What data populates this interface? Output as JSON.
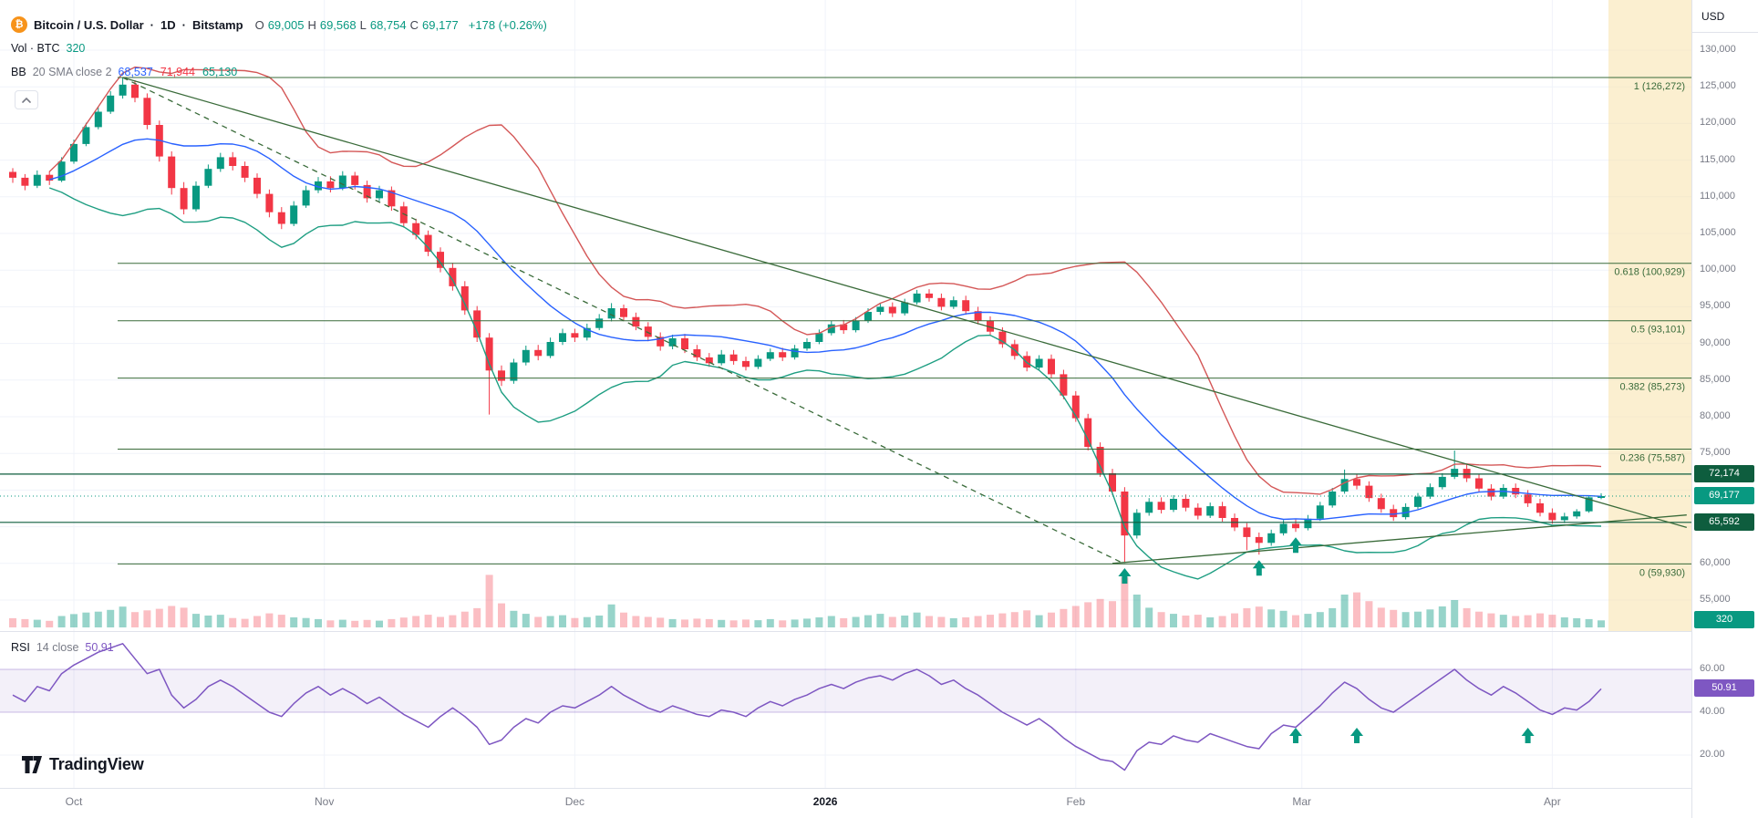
{
  "legend": {
    "title": {
      "symbol": "Bitcoin / U.S. Dollar",
      "separator": "·",
      "interval": "1D",
      "exchange": "Bitstamp"
    },
    "ohlc": [
      {
        "key": "O",
        "value": "69,005"
      },
      {
        "key": "H",
        "value": "69,568"
      },
      {
        "key": "L",
        "value": "68,754"
      },
      {
        "key": "C",
        "value": "69,177"
      }
    ],
    "change": "+178 (+0.26%)",
    "volume": {
      "label": "Vol · BTC",
      "value": "320"
    },
    "bb": {
      "name": "BB",
      "params": "20 SMA close 2",
      "values": [
        {
          "text": "68,537",
          "color": "#2962ff"
        },
        {
          "text": "71,944",
          "color": "#f23645"
        },
        {
          "text": "65,130",
          "color": "#089981"
        }
      ]
    },
    "rsi": {
      "name": "RSI",
      "params": "14 close",
      "value": "50.91"
    }
  },
  "price_axis": {
    "currency": "USD",
    "ticks": [
      {
        "price": 130000,
        "label": "130,000"
      },
      {
        "price": 125000,
        "label": "125,000"
      },
      {
        "price": 120000,
        "label": "120,000"
      },
      {
        "price": 115000,
        "label": "115,000"
      },
      {
        "price": 110000,
        "label": "110,000"
      },
      {
        "price": 105000,
        "label": "105,000"
      },
      {
        "price": 100000,
        "label": "100,000"
      },
      {
        "price": 95000,
        "label": "95,000"
      },
      {
        "price": 90000,
        "label": "90,000"
      },
      {
        "price": 85000,
        "label": "85,000"
      },
      {
        "price": 80000,
        "label": "80,000"
      },
      {
        "price": 75000,
        "label": "75,000"
      },
      {
        "price": 60000,
        "label": "60,000"
      },
      {
        "price": 55000,
        "label": "55,000"
      }
    ],
    "badges": [
      {
        "label": "72,174",
        "price": 72174,
        "color": "#0e5d3e"
      },
      {
        "label": "69,177",
        "price": 69177,
        "color": "#089981"
      },
      {
        "label": "65,592",
        "price": 65592,
        "color": "#0e5d3e"
      }
    ],
    "volume_badge": {
      "label": "320",
      "color": "#089981"
    }
  },
  "rsi_axis": {
    "ticks": [
      {
        "value": 60,
        "label": "60.00"
      },
      {
        "value": 40,
        "label": "40.00"
      },
      {
        "value": 20,
        "label": "20.00"
      }
    ],
    "badge": {
      "label": "50.91",
      "value": 50.91,
      "color": "#7e57c2"
    }
  },
  "time_axis": {
    "months": [
      {
        "label": "Oct",
        "index": 5
      },
      {
        "label": "Nov",
        "index": 25.5
      },
      {
        "label": "Dec",
        "index": 46
      },
      {
        "label": "2026",
        "index": 66.5,
        "year": true
      },
      {
        "label": "Feb",
        "index": 87
      },
      {
        "label": "Mar",
        "index": 105.5
      },
      {
        "label": "Apr",
        "index": 126
      }
    ]
  },
  "watermark": "TradingView",
  "chart_data": {
    "type": "candlestick",
    "symbol": "Bitcoin / U.S. Dollar (Bitstamp)",
    "interval": "1D",
    "price_axis_range": [
      55000,
      130000
    ],
    "last_price": 69177,
    "last_volume": 320,
    "fib_levels": [
      {
        "label": "1 (126,272)",
        "price": 126272
      },
      {
        "label": "0.618 (100,929)",
        "price": 100929
      },
      {
        "label": "0.5 (93,101)",
        "price": 93101
      },
      {
        "label": "0.382 (85,273)",
        "price": 85273
      },
      {
        "label": "0.236 (75,587)",
        "price": 75587
      },
      {
        "label": "0 (59,930)",
        "price": 59930
      }
    ],
    "horizontal_lines": [
      {
        "price": 72174,
        "label": "72,174"
      },
      {
        "price": 65592,
        "label": "65,592"
      }
    ],
    "trend_lines": [
      {
        "from_index": 9,
        "from_price": 126272,
        "to_index": 137,
        "to_price": 64900,
        "dashed": false
      },
      {
        "from_index": 90,
        "from_price": 60000,
        "to_index": 137,
        "to_price": 66600,
        "dashed": false
      },
      {
        "from_index": 9,
        "from_price": 126272,
        "to_index": 91,
        "to_price": 59930,
        "dashed": true
      }
    ],
    "price_arrows": [
      91,
      102,
      105
    ],
    "rsi_arrows": [
      105,
      110,
      124
    ],
    "rsi_bands": [
      40,
      60
    ],
    "candles": [
      [
        113400,
        113900,
        111900,
        112600
      ],
      [
        112600,
        113100,
        110900,
        111500
      ],
      [
        111500,
        113600,
        111200,
        113000
      ],
      [
        113000,
        113500,
        111600,
        112200
      ],
      [
        112200,
        115400,
        112000,
        114800
      ],
      [
        114800,
        117800,
        114500,
        117200
      ],
      [
        117200,
        120100,
        116900,
        119500
      ],
      [
        119500,
        122200,
        119200,
        121600
      ],
      [
        121600,
        124400,
        121300,
        123800
      ],
      [
        123800,
        126270,
        123400,
        125300
      ],
      [
        125300,
        125900,
        122900,
        123500
      ],
      [
        123500,
        124100,
        119200,
        119800
      ],
      [
        119800,
        120400,
        114800,
        115500
      ],
      [
        115500,
        116200,
        110300,
        111200
      ],
      [
        111200,
        112000,
        107600,
        108300
      ],
      [
        108300,
        112100,
        108000,
        111500
      ],
      [
        111500,
        114400,
        111200,
        113800
      ],
      [
        113800,
        116000,
        113400,
        115400
      ],
      [
        115400,
        116100,
        113600,
        114200
      ],
      [
        114200,
        114800,
        112000,
        112600
      ],
      [
        112600,
        113200,
        109800,
        110400
      ],
      [
        110400,
        111000,
        107200,
        107900
      ],
      [
        107900,
        108600,
        105600,
        106300
      ],
      [
        106300,
        109400,
        106000,
        108800
      ],
      [
        108800,
        111500,
        108500,
        110900
      ],
      [
        110900,
        112700,
        110500,
        112100
      ],
      [
        112100,
        112800,
        110600,
        111200
      ],
      [
        111200,
        113500,
        110900,
        112900
      ],
      [
        112900,
        113400,
        111000,
        111600
      ],
      [
        111600,
        112200,
        109200,
        109800
      ],
      [
        109800,
        111500,
        109400,
        110900
      ],
      [
        110900,
        111400,
        108100,
        108700
      ],
      [
        108700,
        109300,
        105800,
        106400
      ],
      [
        106400,
        107000,
        104200,
        104800
      ],
      [
        104800,
        105400,
        101900,
        102500
      ],
      [
        102500,
        103100,
        99700,
        100300
      ],
      [
        100300,
        101000,
        97200,
        97800
      ],
      [
        97800,
        98500,
        93900,
        94500
      ],
      [
        94500,
        95100,
        90200,
        90800
      ],
      [
        90800,
        91400,
        80300,
        86300
      ],
      [
        86300,
        87000,
        84200,
        84900
      ],
      [
        84900,
        87900,
        84500,
        87400
      ],
      [
        87400,
        89700,
        87000,
        89100
      ],
      [
        89100,
        89800,
        87700,
        88300
      ],
      [
        88300,
        90800,
        88000,
        90200
      ],
      [
        90200,
        92000,
        89800,
        91400
      ],
      [
        91400,
        92000,
        90200,
        90800
      ],
      [
        90800,
        92700,
        90400,
        92100
      ],
      [
        92100,
        94000,
        91800,
        93400
      ],
      [
        93400,
        95500,
        93000,
        94800
      ],
      [
        94800,
        95300,
        93100,
        93600
      ],
      [
        93600,
        94200,
        91800,
        92300
      ],
      [
        92300,
        92900,
        90300,
        90900
      ],
      [
        90900,
        91500,
        89000,
        89600
      ],
      [
        89600,
        91200,
        89200,
        90700
      ],
      [
        90700,
        91300,
        88700,
        89200
      ],
      [
        89200,
        89800,
        87600,
        88100
      ],
      [
        88100,
        88700,
        86800,
        87300
      ],
      [
        87300,
        89100,
        87000,
        88500
      ],
      [
        88500,
        89100,
        87100,
        87600
      ],
      [
        87600,
        88200,
        86300,
        86800
      ],
      [
        86800,
        88400,
        86500,
        87900
      ],
      [
        87900,
        89300,
        87600,
        88800
      ],
      [
        88800,
        89400,
        87600,
        88100
      ],
      [
        88100,
        89800,
        87800,
        89300
      ],
      [
        89300,
        90700,
        89000,
        90200
      ],
      [
        90200,
        91900,
        89900,
        91400
      ],
      [
        91400,
        93100,
        91100,
        92600
      ],
      [
        92600,
        93200,
        91300,
        91800
      ],
      [
        91800,
        93600,
        91500,
        93100
      ],
      [
        93100,
        94800,
        92800,
        94300
      ],
      [
        94300,
        95500,
        93900,
        95000
      ],
      [
        95000,
        95600,
        93600,
        94100
      ],
      [
        94100,
        96100,
        93800,
        95600
      ],
      [
        95600,
        97300,
        95300,
        96800
      ],
      [
        96800,
        97400,
        95700,
        96200
      ],
      [
        96200,
        96800,
        94500,
        95000
      ],
      [
        95000,
        96400,
        94700,
        95900
      ],
      [
        95900,
        96500,
        93900,
        94400
      ],
      [
        94400,
        95000,
        92600,
        93100
      ],
      [
        93100,
        93700,
        91100,
        91600
      ],
      [
        91600,
        92200,
        89400,
        89900
      ],
      [
        89900,
        90500,
        87800,
        88300
      ],
      [
        88300,
        88900,
        86200,
        86700
      ],
      [
        86700,
        88400,
        86400,
        87900
      ],
      [
        87900,
        88500,
        85300,
        85800
      ],
      [
        85800,
        86400,
        82400,
        82900
      ],
      [
        82900,
        83500,
        79300,
        79800
      ],
      [
        79800,
        80400,
        75400,
        75900
      ],
      [
        75900,
        76500,
        71800,
        72300
      ],
      [
        72300,
        72900,
        69300,
        69800
      ],
      [
        69800,
        70400,
        60100,
        63800
      ],
      [
        63800,
        67400,
        63400,
        66900
      ],
      [
        66900,
        68900,
        66500,
        68400
      ],
      [
        68400,
        69000,
        66800,
        67300
      ],
      [
        67300,
        69300,
        67000,
        68800
      ],
      [
        68800,
        69400,
        67100,
        67600
      ],
      [
        67600,
        68200,
        66000,
        66500
      ],
      [
        66500,
        68300,
        66200,
        67800
      ],
      [
        67800,
        68400,
        65700,
        66200
      ],
      [
        66200,
        66800,
        64400,
        64900
      ],
      [
        64900,
        65500,
        61800,
        63600
      ],
      [
        63600,
        64200,
        61200,
        62800
      ],
      [
        62800,
        64600,
        62400,
        64100
      ],
      [
        64100,
        65900,
        63800,
        65400
      ],
      [
        65400,
        66000,
        64300,
        64800
      ],
      [
        64800,
        66600,
        64500,
        66100
      ],
      [
        66100,
        68400,
        65800,
        67900
      ],
      [
        67900,
        70300,
        67600,
        69800
      ],
      [
        69800,
        72800,
        69500,
        71500
      ],
      [
        71500,
        72100,
        70100,
        70600
      ],
      [
        70600,
        71200,
        68400,
        68900
      ],
      [
        68900,
        69500,
        66900,
        67400
      ],
      [
        67400,
        68000,
        65800,
        66300
      ],
      [
        66300,
        68200,
        66000,
        67700
      ],
      [
        67700,
        69600,
        67400,
        69100
      ],
      [
        69100,
        70900,
        68800,
        70400
      ],
      [
        70400,
        72300,
        70100,
        71800
      ],
      [
        71800,
        75400,
        71500,
        72900
      ],
      [
        72900,
        73500,
        71100,
        71600
      ],
      [
        71600,
        72200,
        69700,
        70200
      ],
      [
        70200,
        70800,
        68600,
        69100
      ],
      [
        69100,
        70800,
        68800,
        70300
      ],
      [
        70300,
        70900,
        68900,
        69400
      ],
      [
        69400,
        70000,
        67700,
        68200
      ],
      [
        68200,
        68800,
        66400,
        66900
      ],
      [
        66900,
        67500,
        65400,
        65900
      ],
      [
        65900,
        66900,
        65500,
        66400
      ],
      [
        66400,
        67400,
        66100,
        67100
      ],
      [
        67100,
        69200,
        66900,
        69000
      ],
      [
        69005,
        69568,
        68754,
        69177
      ]
    ],
    "volumes": [
      420,
      380,
      350,
      300,
      520,
      610,
      680,
      720,
      800,
      950,
      700,
      780,
      850,
      980,
      900,
      620,
      540,
      580,
      430,
      390,
      520,
      640,
      580,
      460,
      430,
      380,
      320,
      350,
      300,
      340,
      310,
      380,
      450,
      520,
      580,
      480,
      560,
      720,
      880,
      2400,
      1100,
      760,
      620,
      480,
      520,
      560,
      430,
      470,
      540,
      1050,
      680,
      520,
      480,
      440,
      380,
      360,
      400,
      380,
      340,
      320,
      360,
      330,
      380,
      320,
      360,
      400,
      460,
      520,
      420,
      480,
      560,
      620,
      480,
      540,
      680,
      520,
      480,
      420,
      460,
      520,
      580,
      640,
      700,
      780,
      560,
      680,
      840,
      980,
      1150,
      1300,
      1200,
      2300,
      1500,
      900,
      700,
      620,
      540,
      580,
      460,
      520,
      640,
      880,
      950,
      820,
      760,
      560,
      620,
      700,
      880,
      1500,
      1600,
      1200,
      900,
      800,
      700,
      720,
      820,
      960,
      1250,
      880,
      720,
      640,
      580,
      520,
      560,
      640,
      580,
      460,
      420,
      380,
      320
    ],
    "rsi_series": [
      48,
      45,
      52,
      50,
      58,
      62,
      65,
      68,
      70,
      72,
      65,
      58,
      60,
      48,
      42,
      46,
      52,
      55,
      52,
      48,
      44,
      40,
      38,
      44,
      49,
      52,
      48,
      51,
      48,
      44,
      47,
      43,
      39,
      36,
      33,
      38,
      42,
      38,
      33,
      25,
      27,
      33,
      37,
      35,
      40,
      43,
      42,
      45,
      48,
      52,
      48,
      45,
      42,
      40,
      43,
      41,
      39,
      38,
      41,
      40,
      38,
      42,
      45,
      43,
      46,
      48,
      51,
      53,
      51,
      54,
      56,
      57,
      55,
      58,
      60,
      57,
      53,
      55,
      51,
      48,
      44,
      40,
      37,
      34,
      37,
      33,
      28,
      24,
      21,
      18,
      17,
      13,
      22,
      26,
      25,
      29,
      27,
      26,
      30,
      28,
      26,
      24,
      23,
      30,
      34,
      33,
      38,
      43,
      49,
      54,
      51,
      46,
      42,
      40,
      44,
      48,
      52,
      56,
      60,
      55,
      51,
      48,
      52,
      49,
      45,
      41,
      39,
      42,
      41,
      45,
      50.91
    ],
    "colors": {
      "up": "#089981",
      "down": "#f23645",
      "vol_up": "rgba(8,153,129,0.42)",
      "vol_down": "rgba(242,54,69,0.32)",
      "bb_basis": "#2962ff",
      "bb_upper": "#d45757",
      "bb_lower": "#1e9e82",
      "rsi_line": "#7e57c2",
      "rsi_fill": "rgba(126,87,194,0.09)",
      "rsi_band_edge": "rgba(126,87,194,0.4)",
      "drawing": "#3a6b3a",
      "level_line": "#0e5d3e",
      "arrow": "#089981",
      "highlight": "rgba(247,225,170,0.55)",
      "grid": "#f0f3fa",
      "separator": "#e0e3eb",
      "axis_text": "#787b86"
    }
  }
}
